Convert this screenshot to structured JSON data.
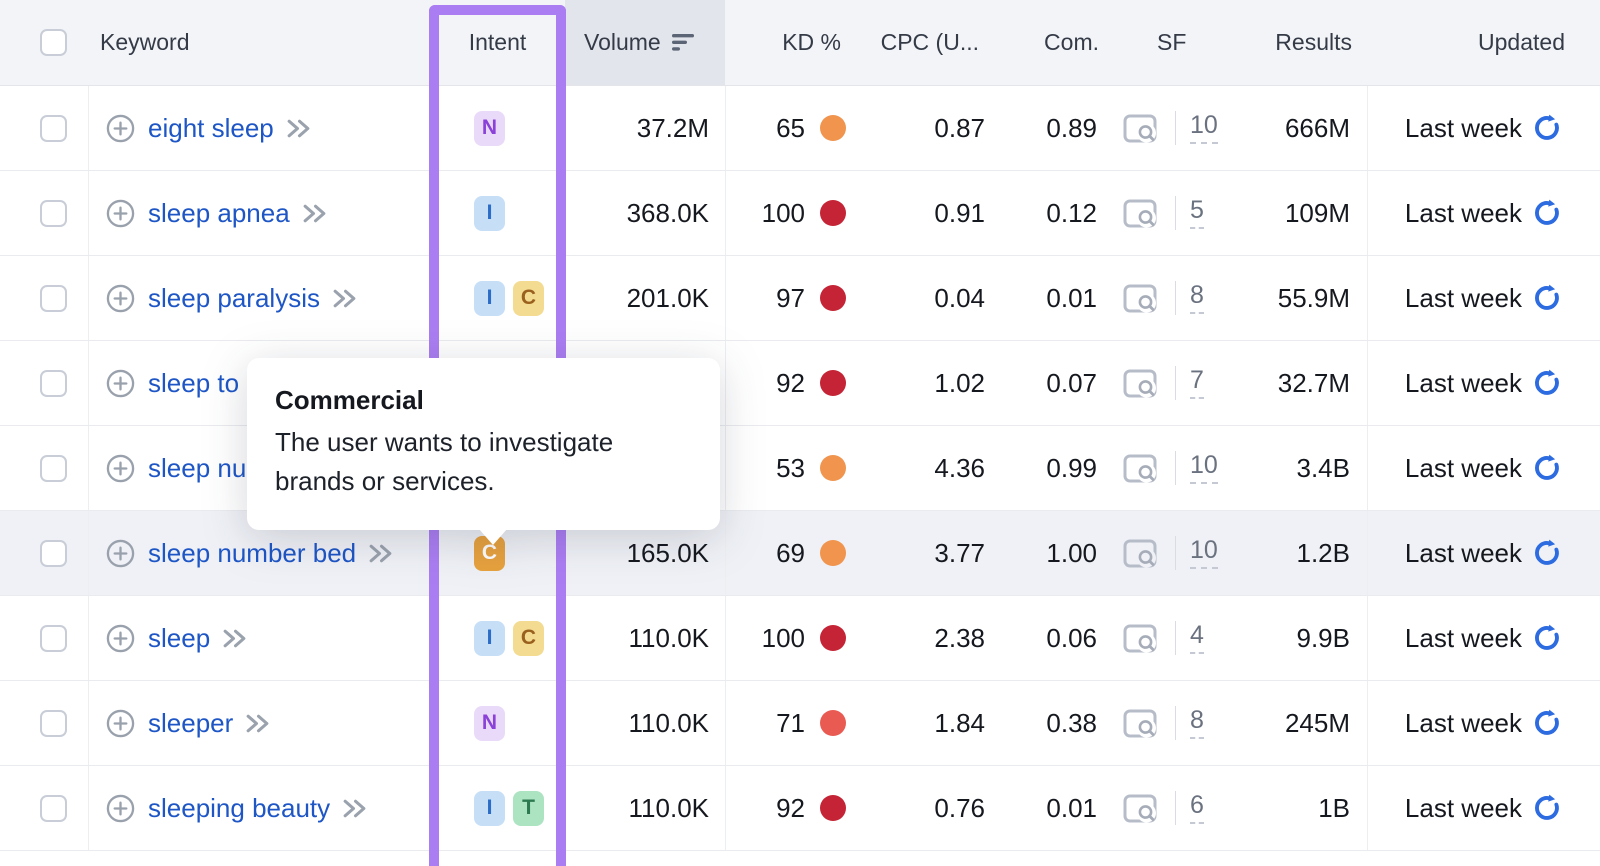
{
  "colors": {
    "accent_purple": "#AB7DF2",
    "link_blue": "#1E56C6",
    "refresh_blue": "#2D6BE0",
    "kd_orange": "#F0944E",
    "kd_coral": "#E95B52",
    "kd_red": "#C42435",
    "header_bg": "#F3F4F8",
    "volume_header_bg": "#E3E5EC",
    "row_highlight_bg": "#EFF1F6"
  },
  "header": {
    "keyword": "Keyword",
    "intent": "Intent",
    "volume": "Volume",
    "kd": "KD %",
    "cpc": "CPC (U...",
    "com": "Com.",
    "sf": "SF",
    "results": "Results",
    "updated": "Updated"
  },
  "tooltip": {
    "title": "Commercial",
    "body": "The user wants to investigate brands or services."
  },
  "rows": [
    {
      "keyword": "eight sleep",
      "badges": [
        {
          "letter": "N",
          "type": "n"
        }
      ],
      "volume": "37.2M",
      "kd": "65",
      "kd_color": "kd_orange",
      "cpc": "0.87",
      "com": "0.89",
      "sf": "10",
      "results": "666M",
      "updated": "Last week"
    },
    {
      "keyword": "sleep apnea",
      "badges": [
        {
          "letter": "I",
          "type": "i"
        }
      ],
      "volume": "368.0K",
      "kd": "100",
      "kd_color": "kd_red",
      "cpc": "0.91",
      "com": "0.12",
      "sf": "5",
      "results": "109M",
      "updated": "Last week"
    },
    {
      "keyword": "sleep paralysis",
      "badges": [
        {
          "letter": "I",
          "type": "i"
        },
        {
          "letter": "C",
          "type": "c"
        }
      ],
      "volume": "201.0K",
      "kd": "97",
      "kd_color": "kd_red",
      "cpc": "0.04",
      "com": "0.01",
      "sf": "8",
      "results": "55.9M",
      "updated": "Last week"
    },
    {
      "keyword": "sleep to",
      "covered": true,
      "badges": [],
      "volume": "",
      "kd": "92",
      "kd_color": "kd_red",
      "cpc": "1.02",
      "com": "0.07",
      "sf": "7",
      "results": "32.7M",
      "updated": "Last week"
    },
    {
      "keyword": "sleep nu",
      "covered": true,
      "badges": [],
      "volume": "",
      "kd": "53",
      "kd_color": "kd_orange",
      "cpc": "4.36",
      "com": "0.99",
      "sf": "10",
      "results": "3.4B",
      "updated": "Last week"
    },
    {
      "keyword": "sleep number bed",
      "highlighted": true,
      "badges": [
        {
          "letter": "C",
          "type": "c-active"
        }
      ],
      "volume": "165.0K",
      "kd": "69",
      "kd_color": "kd_orange",
      "cpc": "3.77",
      "com": "1.00",
      "sf": "10",
      "results": "1.2B",
      "updated": "Last week"
    },
    {
      "keyword": "sleep",
      "badges": [
        {
          "letter": "I",
          "type": "i"
        },
        {
          "letter": "C",
          "type": "c"
        }
      ],
      "volume": "110.0K",
      "kd": "100",
      "kd_color": "kd_red",
      "cpc": "2.38",
      "com": "0.06",
      "sf": "4",
      "results": "9.9B",
      "updated": "Last week"
    },
    {
      "keyword": "sleeper",
      "badges": [
        {
          "letter": "N",
          "type": "n"
        }
      ],
      "volume": "110.0K",
      "kd": "71",
      "kd_color": "kd_coral",
      "cpc": "1.84",
      "com": "0.38",
      "sf": "8",
      "results": "245M",
      "updated": "Last week"
    },
    {
      "keyword": "sleeping beauty",
      "badges": [
        {
          "letter": "I",
          "type": "i"
        },
        {
          "letter": "T",
          "type": "t"
        }
      ],
      "volume": "110.0K",
      "kd": "92",
      "kd_color": "kd_red",
      "cpc": "0.76",
      "com": "0.01",
      "sf": "6",
      "results": "1B",
      "updated": "Last week"
    }
  ]
}
